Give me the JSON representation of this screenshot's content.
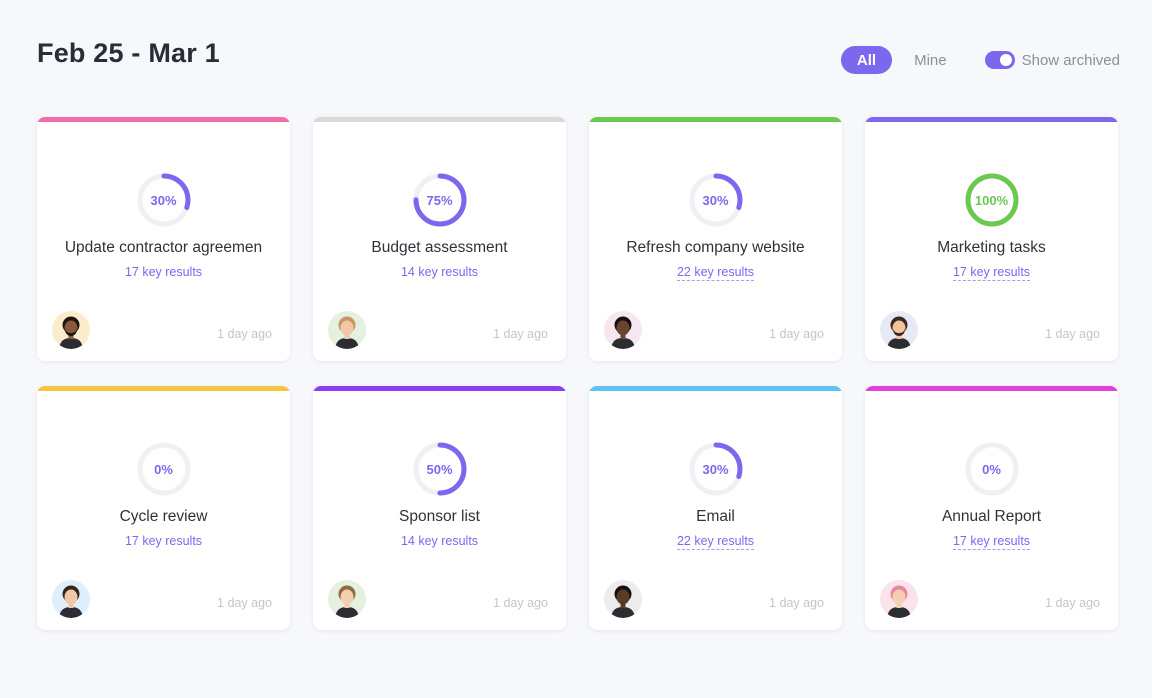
{
  "header": {
    "title": "Feb 25 - Mar 1",
    "filter_all": "All",
    "filter_mine": "Mine",
    "show_archived": "Show archived",
    "show_archived_on": true
  },
  "colors": {
    "accent": "#7b68ee",
    "complete": "#6bc950",
    "track": "#eef0f4"
  },
  "goals": [
    {
      "name": "Update contractor agreemen",
      "progress": 30,
      "key_results": "17 key results",
      "updated": "1 day ago",
      "bar_color": "#f06ea9",
      "avatar_bg": "#fbeccc",
      "skin": "#8a5a3c",
      "hair": "#1f1612",
      "beard": true,
      "avatar_icon": "user-avatar-icon"
    },
    {
      "name": "Budget assessment",
      "progress": 75,
      "key_results": "14 key results",
      "updated": "1 day ago",
      "bar_color": "#d9d9d9",
      "avatar_bg": "#e3f1de",
      "skin": "#f2c9a6",
      "hair": "#c99563",
      "beard": false,
      "avatar_icon": "user-avatar-icon"
    },
    {
      "name": "Refresh company website",
      "progress": 30,
      "key_results": "22 key results",
      "updated": "1 day ago",
      "bar_color": "#6bc950",
      "avatar_bg": "#f7e6ef",
      "skin": "#6a4430",
      "hair": "#15100d",
      "beard": false,
      "avatar_icon": "user-avatar-icon"
    },
    {
      "name": "Marketing tasks",
      "progress": 100,
      "key_results": "17 key results",
      "updated": "1 day ago",
      "bar_color": "#7b68ee",
      "avatar_bg": "#e7e9f4",
      "skin": "#f0c49d",
      "hair": "#3b2a22",
      "beard": true,
      "avatar_icon": "user-avatar-icon"
    },
    {
      "name": "Cycle review",
      "progress": 0,
      "key_results": "17 key results",
      "updated": "1 day ago",
      "bar_color": "#f5c440",
      "avatar_bg": "#dfeefb",
      "skin": "#f0c7a4",
      "hair": "#3a2317",
      "beard": false,
      "avatar_icon": "user-avatar-icon"
    },
    {
      "name": "Sponsor list",
      "progress": 50,
      "key_results": "14 key results",
      "updated": "1 day ago",
      "bar_color": "#8a3ff0",
      "avatar_bg": "#e3f1de",
      "skin": "#f3cfb0",
      "hair": "#8c6a45",
      "beard": false,
      "avatar_icon": "user-avatar-icon"
    },
    {
      "name": "Email",
      "progress": 30,
      "key_results": "22 key results",
      "updated": "1 day ago",
      "bar_color": "#5ec2f2",
      "avatar_bg": "#ececec",
      "skin": "#5c3a2a",
      "hair": "#15100d",
      "beard": false,
      "avatar_icon": "user-avatar-icon"
    },
    {
      "name": "Annual Report",
      "progress": 0,
      "key_results": "17 key results",
      "updated": "1 day ago",
      "bar_color": "#e33fd9",
      "avatar_bg": "#fbe3ea",
      "skin": "#f4cfb2",
      "hair": "#e8859f",
      "beard": false,
      "avatar_icon": "user-avatar-icon"
    }
  ]
}
